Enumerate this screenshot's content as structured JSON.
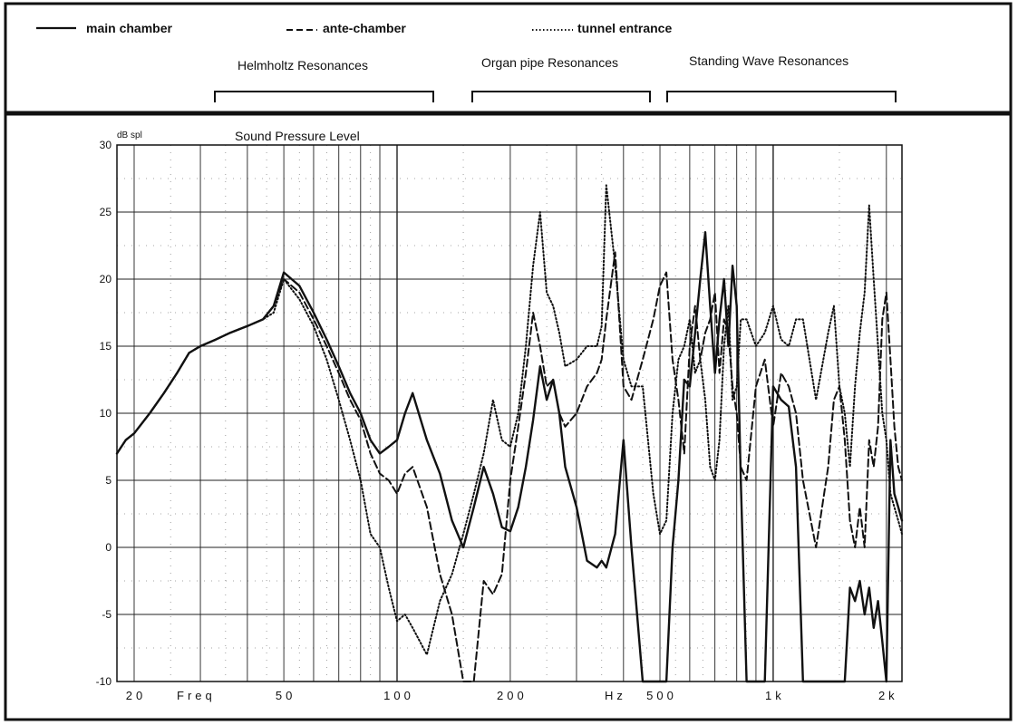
{
  "chart_data": {
    "type": "line",
    "title": "Sound Pressure Level",
    "ylabel": "dB spl",
    "xlabel_parts": [
      "Freq",
      "Hz"
    ],
    "x_scale": "log",
    "xlim": [
      18,
      2200
    ],
    "ylim": [
      -10,
      30
    ],
    "grid": true,
    "legend_position": "top",
    "y_ticks": [
      30,
      25,
      20,
      15,
      10,
      5,
      0,
      -5,
      -10
    ],
    "x_tick_labels": [
      {
        "label": "20",
        "value": 20
      },
      {
        "label": "50",
        "value": 50
      },
      {
        "label": "100",
        "value": 100
      },
      {
        "label": "200",
        "value": 200
      },
      {
        "label": "500",
        "value": 500
      },
      {
        "label": "1k",
        "value": 1000
      },
      {
        "label": "2k",
        "value": 2000
      }
    ],
    "bands": [
      {
        "label": "Helmholtz Resonances",
        "range": [
          25,
          118
        ]
      },
      {
        "label": "Organ pipe Resonances",
        "range": [
          135,
          435
        ]
      },
      {
        "label": "Standing Wave Resonances",
        "range": [
          455,
          2000
        ]
      }
    ],
    "series": [
      {
        "name": "main chamber",
        "style": "solid",
        "x": [
          18,
          19,
          20,
          22,
          24,
          26,
          28,
          30,
          33,
          36,
          40,
          44,
          47,
          50,
          55,
          60,
          65,
          70,
          75,
          80,
          85,
          90,
          95,
          100,
          105,
          110,
          120,
          130,
          140,
          150,
          160,
          170,
          180,
          190,
          200,
          210,
          220,
          230,
          240,
          250,
          260,
          270,
          280,
          300,
          320,
          340,
          350,
          360,
          380,
          400,
          420,
          450,
          480,
          500,
          520,
          540,
          560,
          580,
          600,
          620,
          640,
          660,
          680,
          700,
          720,
          740,
          760,
          780,
          800,
          820,
          850,
          900,
          950,
          1000,
          1050,
          1100,
          1150,
          1200,
          1300,
          1400,
          1450,
          1500,
          1550,
          1600,
          1650,
          1700,
          1750,
          1800,
          1850,
          1900,
          1950,
          2000,
          2050,
          2100,
          2150,
          2200
        ],
        "y": [
          7,
          8,
          8.5,
          10,
          11.5,
          13,
          14.5,
          15,
          15.5,
          16,
          16.5,
          17,
          18,
          20.5,
          19.5,
          17.5,
          15.5,
          13.5,
          11.5,
          10,
          8,
          7,
          7.5,
          8,
          10,
          11.5,
          8,
          5.5,
          2,
          0,
          3,
          6,
          4,
          1.5,
          1.2,
          3,
          6,
          9.5,
          13.5,
          11,
          12.5,
          10,
          6,
          3,
          -1,
          -1.5,
          -1,
          -1.5,
          1,
          8,
          0,
          -10,
          -10,
          -10,
          -10,
          0,
          5,
          12.5,
          12,
          16,
          20,
          23.5,
          18,
          13,
          17,
          20,
          15,
          21,
          18,
          5,
          -10,
          -10,
          -10,
          12,
          11,
          10.5,
          6,
          -10,
          -10,
          -10,
          -10,
          -10,
          -10,
          -3,
          -4,
          -2.5,
          -5,
          -3,
          -6,
          -4,
          -7,
          -10,
          8,
          4,
          3,
          2
        ]
      },
      {
        "name": "ante-chamber",
        "style": "dashed",
        "x": [
          18,
          19,
          20,
          22,
          24,
          26,
          28,
          30,
          33,
          36,
          40,
          44,
          47,
          50,
          55,
          60,
          65,
          70,
          75,
          80,
          85,
          90,
          95,
          100,
          105,
          110,
          120,
          130,
          140,
          150,
          160,
          170,
          180,
          190,
          200,
          210,
          220,
          230,
          240,
          250,
          260,
          270,
          280,
          300,
          320,
          340,
          350,
          360,
          380,
          400,
          420,
          450,
          480,
          500,
          520,
          540,
          560,
          580,
          600,
          620,
          640,
          660,
          680,
          700,
          720,
          740,
          760,
          780,
          800,
          820,
          850,
          900,
          950,
          1000,
          1050,
          1100,
          1150,
          1200,
          1300,
          1400,
          1450,
          1500,
          1550,
          1600,
          1650,
          1700,
          1750,
          1800,
          1850,
          1900,
          1950,
          2000,
          2050,
          2100,
          2150,
          2200
        ],
        "y": [
          7,
          8,
          8.5,
          10,
          11.5,
          13,
          14.5,
          15,
          15.5,
          16,
          16.5,
          17,
          18,
          20,
          19,
          17,
          15,
          13,
          11,
          9.5,
          7,
          5.5,
          5,
          4,
          5.5,
          6,
          3,
          -2,
          -5,
          -10,
          -10,
          -2.5,
          -3.5,
          -2,
          5,
          9,
          13,
          17.5,
          15,
          12,
          12.5,
          10,
          9,
          10,
          12,
          13,
          14,
          17,
          22,
          12,
          11,
          14,
          17,
          19.5,
          20.5,
          14,
          11,
          7,
          15,
          18,
          14,
          16,
          17,
          19,
          13,
          17,
          16,
          12,
          10,
          6,
          5,
          12,
          14,
          9,
          13,
          12,
          10,
          5,
          0,
          6,
          11,
          12,
          8,
          2,
          0,
          3,
          0,
          8,
          6,
          9,
          17,
          19,
          14,
          9,
          6,
          5
        ]
      },
      {
        "name": "tunnel entrance",
        "style": "dotted",
        "x": [
          18,
          19,
          20,
          22,
          24,
          26,
          28,
          30,
          33,
          36,
          40,
          44,
          47,
          50,
          55,
          60,
          65,
          70,
          75,
          80,
          85,
          90,
          95,
          100,
          105,
          110,
          120,
          130,
          140,
          150,
          160,
          170,
          180,
          190,
          200,
          210,
          220,
          230,
          240,
          250,
          260,
          270,
          280,
          300,
          320,
          340,
          350,
          360,
          380,
          400,
          420,
          450,
          480,
          500,
          520,
          540,
          560,
          580,
          600,
          620,
          640,
          660,
          680,
          700,
          720,
          740,
          760,
          780,
          800,
          820,
          850,
          900,
          950,
          1000,
          1050,
          1100,
          1150,
          1200,
          1300,
          1400,
          1450,
          1500,
          1550,
          1600,
          1650,
          1700,
          1750,
          1800,
          1850,
          1900,
          1950,
          2000,
          2050,
          2100,
          2150,
          2200
        ],
        "y": [
          7,
          8,
          8.5,
          10,
          11.5,
          13,
          14.5,
          15,
          15.5,
          16,
          16.5,
          17,
          17.5,
          20,
          18.5,
          16.5,
          14,
          11,
          8,
          5,
          1,
          0,
          -3,
          -5.5,
          -5,
          -6,
          -8,
          -4,
          -2,
          1,
          4,
          7,
          11,
          8,
          7.5,
          10,
          15,
          21,
          25,
          19,
          18,
          16,
          13.5,
          14,
          15,
          15,
          16.5,
          27,
          21,
          14,
          12,
          12,
          4,
          1,
          2,
          10,
          14,
          15,
          17,
          13,
          14,
          11,
          6,
          5,
          8,
          15,
          18,
          11,
          12,
          17,
          17,
          15,
          16,
          18,
          15.5,
          15,
          17,
          17,
          11,
          16,
          18,
          12,
          10,
          6,
          12,
          16,
          19,
          25.5,
          20,
          15,
          10,
          8,
          4,
          3,
          2,
          1
        ]
      }
    ]
  }
}
